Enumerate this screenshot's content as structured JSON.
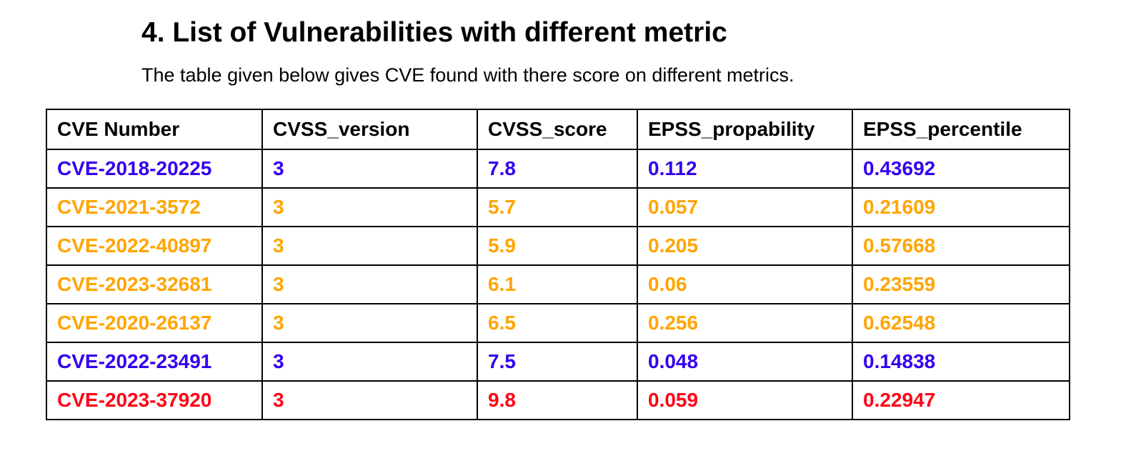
{
  "heading": "4. List of Vulnerabilities with different metric",
  "intro": "The table given below gives CVE found with there score on different metrics.",
  "colors": {
    "blue": "#3300ee",
    "orange": "#ffa500",
    "red": "#ff0016",
    "header": "#000000"
  },
  "table": {
    "columns": [
      "CVE Number",
      "CVSS_version",
      "CVSS_score",
      "EPSS_propability",
      "EPSS_percentile"
    ],
    "rows": [
      {
        "color": "#3300ee",
        "cells": [
          "CVE-2018-20225",
          "3",
          "7.8",
          "0.112",
          "0.43692"
        ]
      },
      {
        "color": "#ffa500",
        "cells": [
          "CVE-2021-3572",
          "3",
          "5.7",
          "0.057",
          "0.21609"
        ]
      },
      {
        "color": "#ffa500",
        "cells": [
          "CVE-2022-40897",
          "3",
          "5.9",
          "0.205",
          "0.57668"
        ]
      },
      {
        "color": "#ffa500",
        "cells": [
          "CVE-2023-32681",
          "3",
          "6.1",
          "0.06",
          "0.23559"
        ]
      },
      {
        "color": "#ffa500",
        "cells": [
          "CVE-2020-26137",
          "3",
          "6.5",
          "0.256",
          "0.62548"
        ]
      },
      {
        "color": "#3300ee",
        "cells": [
          "CVE-2022-23491",
          "3",
          "7.5",
          "0.048",
          "0.14838"
        ]
      },
      {
        "color": "#ff0016",
        "cells": [
          "CVE-2023-37920",
          "3",
          "9.8",
          "0.059",
          "0.22947"
        ]
      }
    ]
  }
}
